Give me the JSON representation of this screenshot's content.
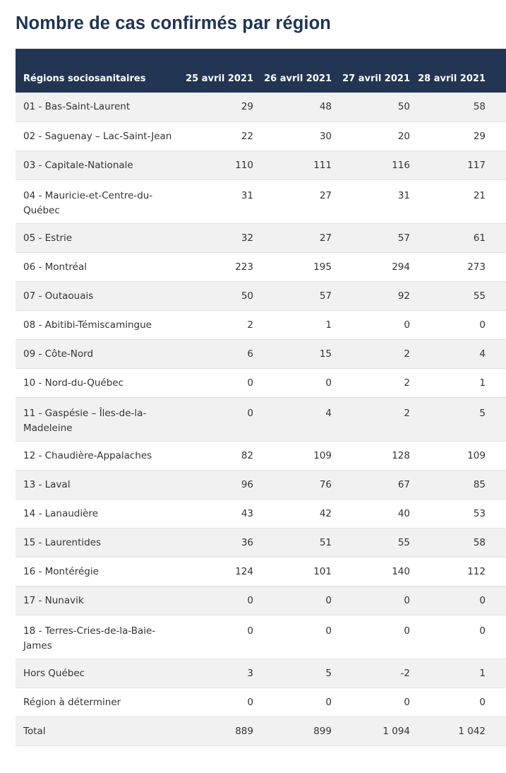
{
  "title": "Nombre de cas confirmés par région",
  "table": {
    "headers": [
      "Régions sociosanitaires",
      "25 avril 2021",
      "26 avril 2021",
      "27 avril 2021",
      "28 avril 2021"
    ],
    "rows": [
      {
        "region": "01 - Bas-Saint-Laurent",
        "values": [
          "29",
          "48",
          "50",
          "58"
        ]
      },
      {
        "region": "02 - Saguenay – Lac-Saint-Jean",
        "values": [
          "22",
          "30",
          "20",
          "29"
        ]
      },
      {
        "region": "03 - Capitale-Nationale",
        "values": [
          "110",
          "111",
          "116",
          "117"
        ]
      },
      {
        "region": "04 - Mauricie-et-Centre-du-Québec",
        "values": [
          "31",
          "27",
          "31",
          "21"
        ]
      },
      {
        "region": "05 - Estrie",
        "values": [
          "32",
          "27",
          "57",
          "61"
        ]
      },
      {
        "region": "06 - Montréal",
        "values": [
          "223",
          "195",
          "294",
          "273"
        ]
      },
      {
        "region": "07 - Outaouais",
        "values": [
          "50",
          "57",
          "92",
          "55"
        ]
      },
      {
        "region": "08 - Abitibi-Témiscamingue",
        "values": [
          "2",
          "1",
          "0",
          "0"
        ]
      },
      {
        "region": "09 - Côte-Nord",
        "values": [
          "6",
          "15",
          "2",
          "4"
        ]
      },
      {
        "region": "10 - Nord-du-Québec",
        "values": [
          "0",
          "0",
          "2",
          "1"
        ]
      },
      {
        "region": "11 - Gaspésie – Îles-de-la-Madeleine",
        "values": [
          "0",
          "4",
          "2",
          "5"
        ]
      },
      {
        "region": "12 - Chaudière-Appalaches",
        "values": [
          "82",
          "109",
          "128",
          "109"
        ]
      },
      {
        "region": "13 - Laval",
        "values": [
          "96",
          "76",
          "67",
          "85"
        ]
      },
      {
        "region": "14 - Lanaudière",
        "values": [
          "43",
          "42",
          "40",
          "53"
        ]
      },
      {
        "region": "15 - Laurentides",
        "values": [
          "36",
          "51",
          "55",
          "58"
        ]
      },
      {
        "region": "16 - Montérégie",
        "values": [
          "124",
          "101",
          "140",
          "112"
        ]
      },
      {
        "region": "17 - Nunavik",
        "values": [
          "0",
          "0",
          "0",
          "0"
        ]
      },
      {
        "region": "18 - Terres-Cries-de-la-Baie-James",
        "values": [
          "0",
          "0",
          "0",
          "0"
        ]
      },
      {
        "region": "Hors Québec",
        "values": [
          "3",
          "5",
          "-2",
          "1"
        ]
      },
      {
        "region": "Région à déterminer",
        "values": [
          "0",
          "0",
          "0",
          "0"
        ]
      },
      {
        "region": "Total",
        "values": [
          "889",
          "899",
          "1 094",
          "1 042"
        ]
      }
    ]
  }
}
